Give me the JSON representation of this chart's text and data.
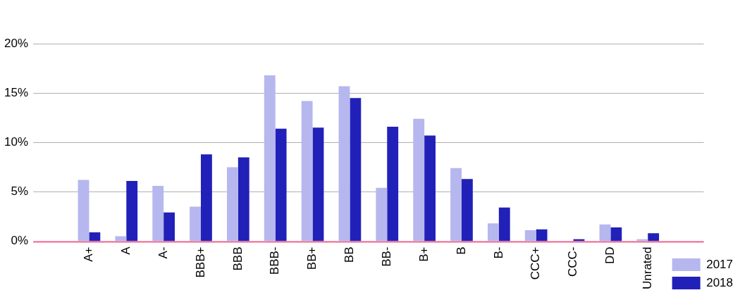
{
  "chart_data": {
    "type": "bar",
    "categories": [
      "A+",
      "A",
      "A-",
      "BBB+",
      "BBB",
      "BBB-",
      "BB+",
      "BB",
      "BB-",
      "B+",
      "B",
      "B-",
      "CCC+",
      "CCC-",
      "DD",
      "Unrated"
    ],
    "series": [
      {
        "name": "2017",
        "color": "#b6b7ee",
        "values": [
          6.2,
          0.5,
          5.6,
          3.5,
          7.5,
          16.8,
          14.2,
          15.7,
          5.4,
          12.4,
          7.4,
          1.8,
          1.1,
          null,
          1.7,
          0.2
        ]
      },
      {
        "name": "2018",
        "color": "#2121b9",
        "values": [
          0.9,
          6.1,
          2.9,
          8.8,
          8.5,
          11.4,
          11.5,
          14.5,
          11.6,
          10.7,
          6.3,
          3.4,
          1.2,
          0.2,
          1.4,
          0.8
        ]
      }
    ],
    "ylim": [
      0,
      20
    ],
    "yticks": [
      {
        "value": 0,
        "label": "0%"
      },
      {
        "value": 5,
        "label": "5%"
      },
      {
        "value": 10,
        "label": "10%"
      },
      {
        "value": 15,
        "label": "15%"
      },
      {
        "value": 20,
        "label": "20%"
      }
    ],
    "grid": "y",
    "legend": "bottom right"
  }
}
